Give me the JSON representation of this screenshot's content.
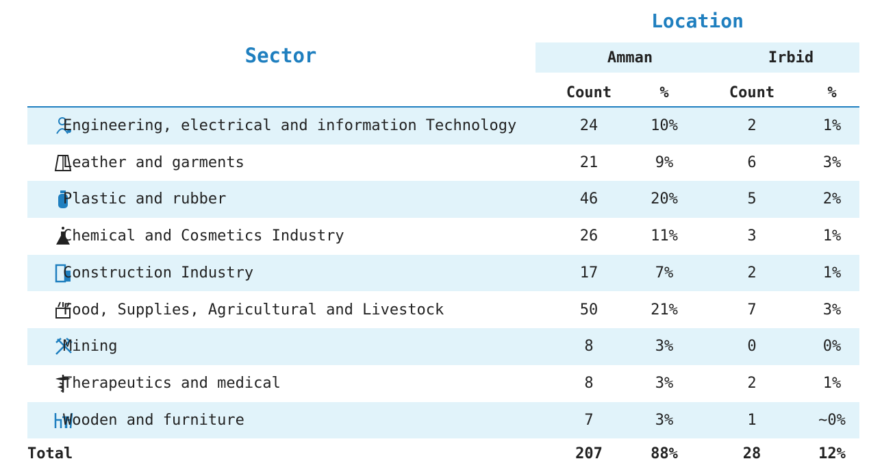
{
  "header": {
    "location": "Location",
    "sector": "Sector",
    "places": [
      "Amman",
      "Irbid"
    ],
    "columns": [
      "Count",
      "%",
      "Count",
      "%"
    ]
  },
  "table": {
    "rows": [
      [
        "Engineering, electrical and information Technology",
        "24",
        "10%",
        "2",
        "1%"
      ],
      [
        "Leather and garments",
        "21",
        "9%",
        "6",
        "3%"
      ],
      [
        "Plastic and rubber",
        "46",
        "20%",
        "5",
        "2%"
      ],
      [
        "Chemical and Cosmetics Industry",
        "26",
        "11%",
        "3",
        "1%"
      ],
      [
        "Construction Industry",
        "17",
        "7%",
        "2",
        "1%"
      ],
      [
        "Food, Supplies, Agricultural and Livestock",
        "50",
        "21%",
        "7",
        "3%"
      ],
      [
        "Mining",
        "8",
        "3%",
        "0",
        "0%"
      ],
      [
        "Therapeutics and medical",
        "8",
        "3%",
        "2",
        "1%"
      ],
      [
        "Wooden and furniture",
        "7",
        "3%",
        "1",
        "~0%"
      ]
    ],
    "total": [
      "Total",
      "207",
      "88%",
      "28",
      "12%"
    ]
  }
}
